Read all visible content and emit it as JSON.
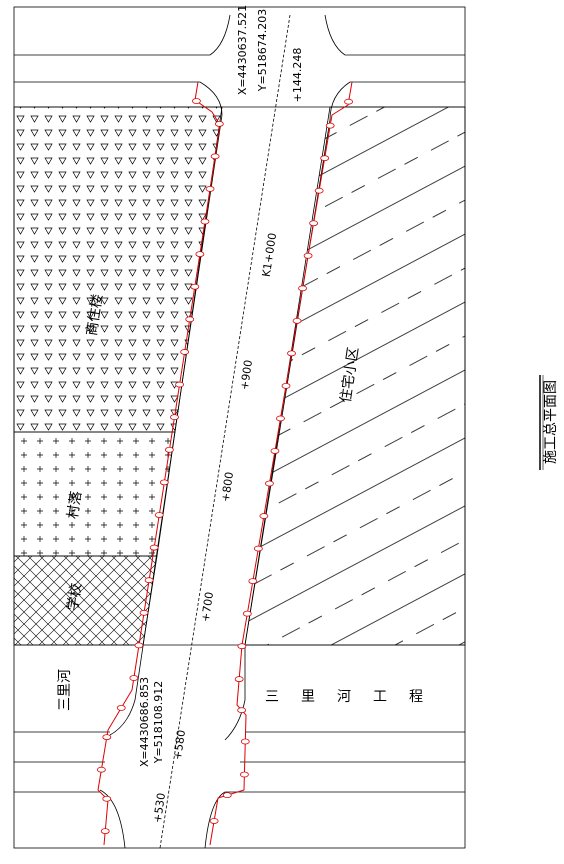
{
  "title": "施工总平面图",
  "coordinates": [
    {
      "x": "X=4430637.521",
      "y": "Y=518674.203"
    },
    {
      "x": "X=4430686.853",
      "y": "Y=518108.912"
    }
  ],
  "stations": [
    "+144.248",
    "K1+000",
    "+900",
    "+800",
    "+700",
    "+580",
    "+530"
  ],
  "areas": [
    "商住楼",
    "村落",
    "学校",
    "住宅小区",
    "三里河"
  ],
  "project": "三里河工程"
}
